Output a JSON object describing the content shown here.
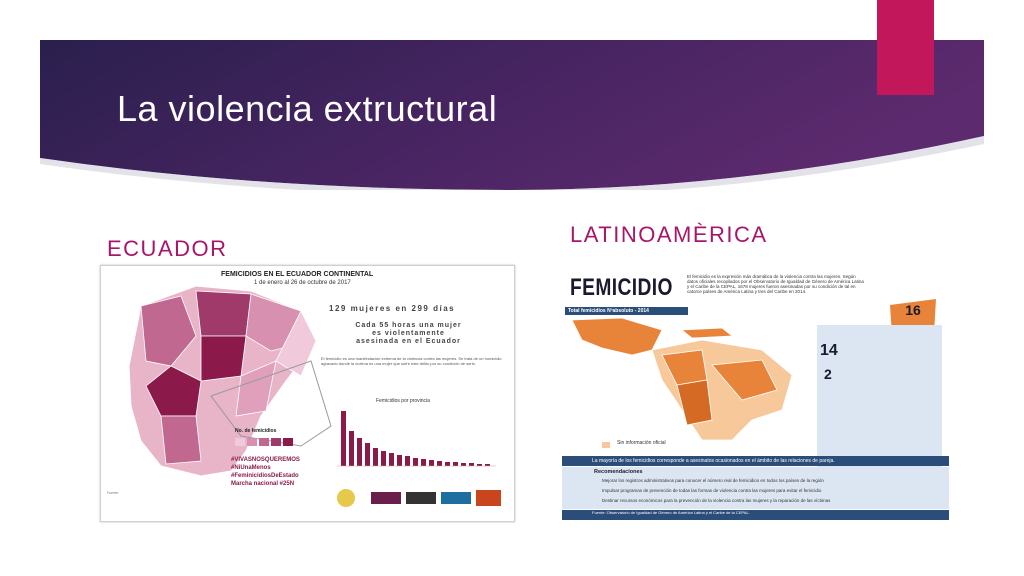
{
  "slide": {
    "title": "La violencia extructural",
    "heading_left": "ECUADOR",
    "heading_right": "LATINOAMÈRICA"
  },
  "colors": {
    "banner_dark": "#2a1f4d",
    "banner_mid": "#5c2a6e",
    "accent_pink": "#c2185b",
    "heading": "#a8166a",
    "map_dark": "#8b1a4a",
    "map_light": "#e8b4c8",
    "map_orange": "#e8843a",
    "map_light_orange": "#f6c89a",
    "info_blue": "#2a4d7a"
  },
  "ecuador_infographic": {
    "title": "FEMICIDIOS EN EL ECUADOR CONTINENTAL",
    "subtitle": "1 de enero al 26 de octubre de 2017",
    "stat1": "129 mujeres en 299 días",
    "stat2": "Cada 55 horas una mujer es violentamente asesinada en el Ecuador",
    "paragraph": "El femicidio es una manifestación extrema de la violencia contra las mujeres. Se trata de un homicidio agravado donde la víctima es una mujer que sufre este delito por su condición de serlo.",
    "chart_title": "Femicidios por provincia",
    "legend_title": "No. de femicidios",
    "tags": [
      "#VIVASNOSQUEREMOS",
      "#NiUnaMenos",
      "#FeminicidiosDeEstado",
      "Marcha nacional #25N"
    ],
    "footnote": "Fuente:"
  },
  "latam_infographic": {
    "title": "FEMICIDIO",
    "paragraph": "El femicidio es la expresión más dramática de la violencia contra las mujeres. Según datos oficiales recopilados por el Observatorio de Igualdad de Género de América Latina y el Caribe de la CEPAL, 1678 mujeres fueron asesinadas por su condición de tal en catorce países de América Latina y tres del Caribe en 2014.",
    "bar_label": "Total femicidios   Nºabsoluto - 2014",
    "badge_number": "16",
    "number_14": "14",
    "number_2": "2",
    "legend": "Sin información oficial",
    "summary": "La mayoría de los femicidios corresponde a asesinatos ocasionados en el ámbito de las relaciones de pareja.",
    "reco_title": "Recomendaciones",
    "recommendations": [
      "Mejorar los registros administrativos para conocer el número real de femicidios en todos los países de la región",
      "Impulsar programas de prevención de todas las formas de violencia contra las mujeres para evitar el femicidio",
      "Destinar recursos económicos para la prevención de la violencia contra las mujeres y la reparación de las víctimas"
    ],
    "footer": "Fuente: Observatorio de Igualdad de Género de América Latina y el Caribe de la CEPAL."
  }
}
